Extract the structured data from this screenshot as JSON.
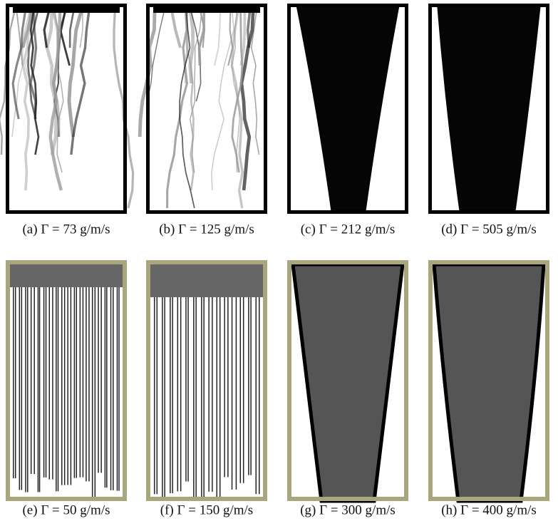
{
  "captions": [
    "(a) Γ = 73 g/m/s",
    "(b) Γ = 125 g/m/s",
    "(c) Γ = 212 g/m/s",
    "(d) Γ = 505 g/m/s",
    "(e) Γ = 50 g/m/s",
    "(f) Γ = 150 g/m/s",
    "(g) Γ = 300 g/m/s",
    "(h) Γ = 400 g/m/s"
  ]
}
